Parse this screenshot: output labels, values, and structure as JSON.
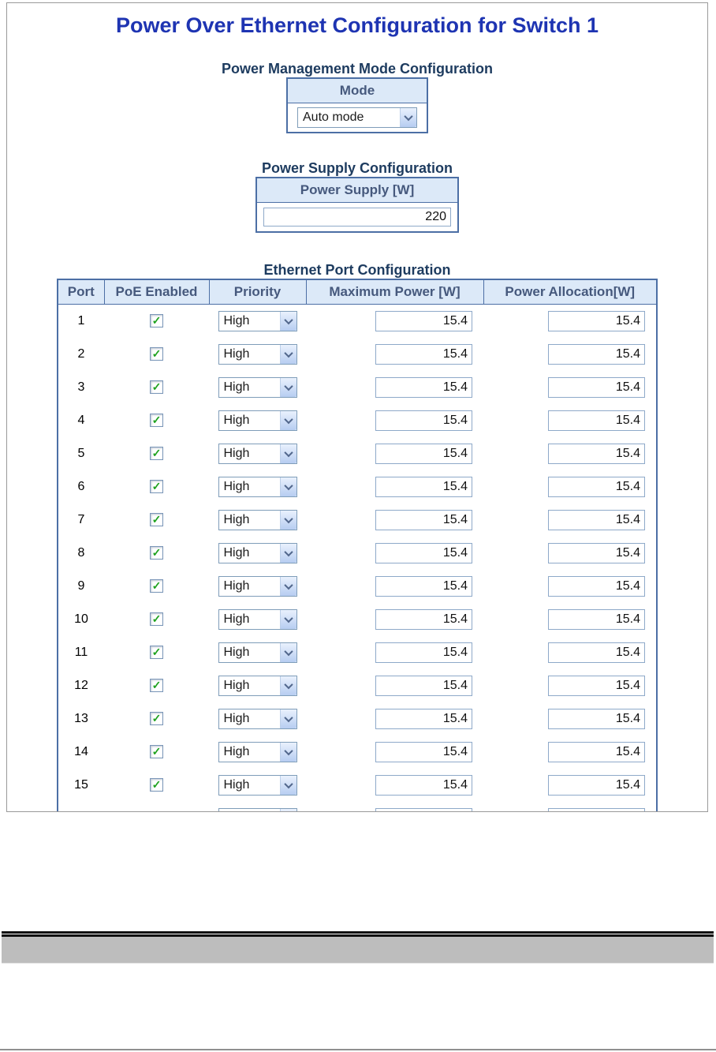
{
  "window": {
    "title": "Power Over Ethernet Configuration for Switch 1"
  },
  "power_management": {
    "heading": "Power Management Mode Configuration",
    "mode_column_header": "Mode",
    "mode_selected": "Auto mode"
  },
  "power_supply": {
    "heading": "Power Supply Configuration",
    "column_header": "Power Supply [W]",
    "value": "220"
  },
  "port_config": {
    "heading": "Ethernet Port Configuration",
    "columns": [
      "Port",
      "PoE Enabled",
      "Priority",
      "Maximum Power [W]",
      "Power Allocation[W]"
    ],
    "rows": [
      {
        "port": "1",
        "poe_enabled": true,
        "priority": "High",
        "maximum_power": "15.4",
        "power_allocation": "15.4"
      },
      {
        "port": "2",
        "poe_enabled": true,
        "priority": "High",
        "maximum_power": "15.4",
        "power_allocation": "15.4"
      },
      {
        "port": "3",
        "poe_enabled": true,
        "priority": "High",
        "maximum_power": "15.4",
        "power_allocation": "15.4"
      },
      {
        "port": "4",
        "poe_enabled": true,
        "priority": "High",
        "maximum_power": "15.4",
        "power_allocation": "15.4"
      },
      {
        "port": "5",
        "poe_enabled": true,
        "priority": "High",
        "maximum_power": "15.4",
        "power_allocation": "15.4"
      },
      {
        "port": "6",
        "poe_enabled": true,
        "priority": "High",
        "maximum_power": "15.4",
        "power_allocation": "15.4"
      },
      {
        "port": "7",
        "poe_enabled": true,
        "priority": "High",
        "maximum_power": "15.4",
        "power_allocation": "15.4"
      },
      {
        "port": "8",
        "poe_enabled": true,
        "priority": "High",
        "maximum_power": "15.4",
        "power_allocation": "15.4"
      },
      {
        "port": "9",
        "poe_enabled": true,
        "priority": "High",
        "maximum_power": "15.4",
        "power_allocation": "15.4"
      },
      {
        "port": "10",
        "poe_enabled": true,
        "priority": "High",
        "maximum_power": "15.4",
        "power_allocation": "15.4"
      },
      {
        "port": "11",
        "poe_enabled": true,
        "priority": "High",
        "maximum_power": "15.4",
        "power_allocation": "15.4"
      },
      {
        "port": "12",
        "poe_enabled": true,
        "priority": "High",
        "maximum_power": "15.4",
        "power_allocation": "15.4"
      },
      {
        "port": "13",
        "poe_enabled": true,
        "priority": "High",
        "maximum_power": "15.4",
        "power_allocation": "15.4"
      },
      {
        "port": "14",
        "poe_enabled": true,
        "priority": "High",
        "maximum_power": "15.4",
        "power_allocation": "15.4"
      },
      {
        "port": "15",
        "poe_enabled": true,
        "priority": "High",
        "maximum_power": "15.4",
        "power_allocation": "15.4"
      }
    ]
  },
  "icons": {
    "checkbox_checked": "✓"
  },
  "colors": {
    "title_blue": "#1e34b2",
    "section_heading": "#1d3b5f",
    "table_border": "#4c6fa5",
    "table_header_bg": "#dce9f8",
    "table_header_text": "#46597d",
    "port_header_text": "#27436b",
    "input_border": "#8ea9c9",
    "checkbox_green": "#1fa21f",
    "divider_gray": "#bdbdbd"
  }
}
